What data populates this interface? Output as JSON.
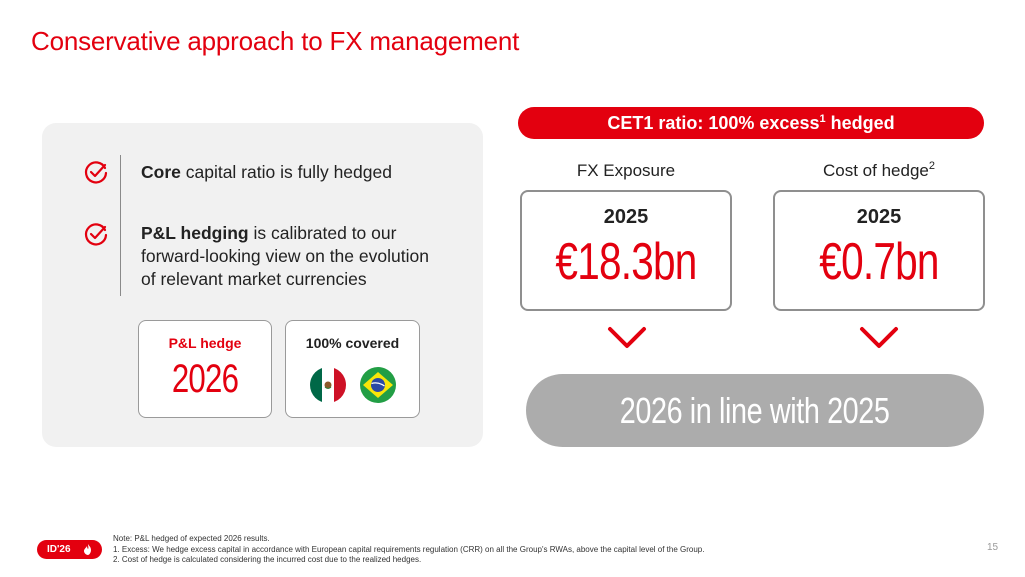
{
  "title": "Conservative approach to FX management",
  "left": {
    "bullets": [
      {
        "bold": "Core",
        "text": " capital ratio is fully hedged"
      },
      {
        "bold": "P&L hedging",
        "text": " is calibrated to our",
        "line2": "forward-looking view on the evolution",
        "line3": "of relevant market currencies"
      }
    ],
    "hedge_card": {
      "label": "P&L hedge",
      "year": "2026"
    },
    "covered_card": {
      "label": "100% covered",
      "flags": [
        "mexico-flag-icon",
        "brazil-flag-icon"
      ]
    }
  },
  "right": {
    "banner": {
      "text": "CET1 ratio: 100% excess",
      "sup": "1",
      "suffix": " hedged"
    },
    "columns": [
      {
        "header": "FX Exposure",
        "sup": "",
        "year": "2025",
        "value": "€18.3bn"
      },
      {
        "header": "Cost of hedge",
        "sup": "2",
        "year": "2025",
        "value": "€0.7bn"
      }
    ],
    "conclusion": "2026 in line with 2025"
  },
  "footer": {
    "badge": "ID'26",
    "note": "Note: P&L hedged of expected 2026 results.",
    "footnotes": [
      "1.   Excess: We hedge excess capital in accordance with European capital requirements regulation (CRR) on all the Group's RWAs, above the capital level of the Group.",
      "2.   Cost of hedge is calculated considering the incurred cost due to the realized hedges."
    ],
    "page": "15"
  },
  "colors": {
    "accent": "#e3000f",
    "panel": "#f1f1f1",
    "grey_pill": "#acacac"
  }
}
